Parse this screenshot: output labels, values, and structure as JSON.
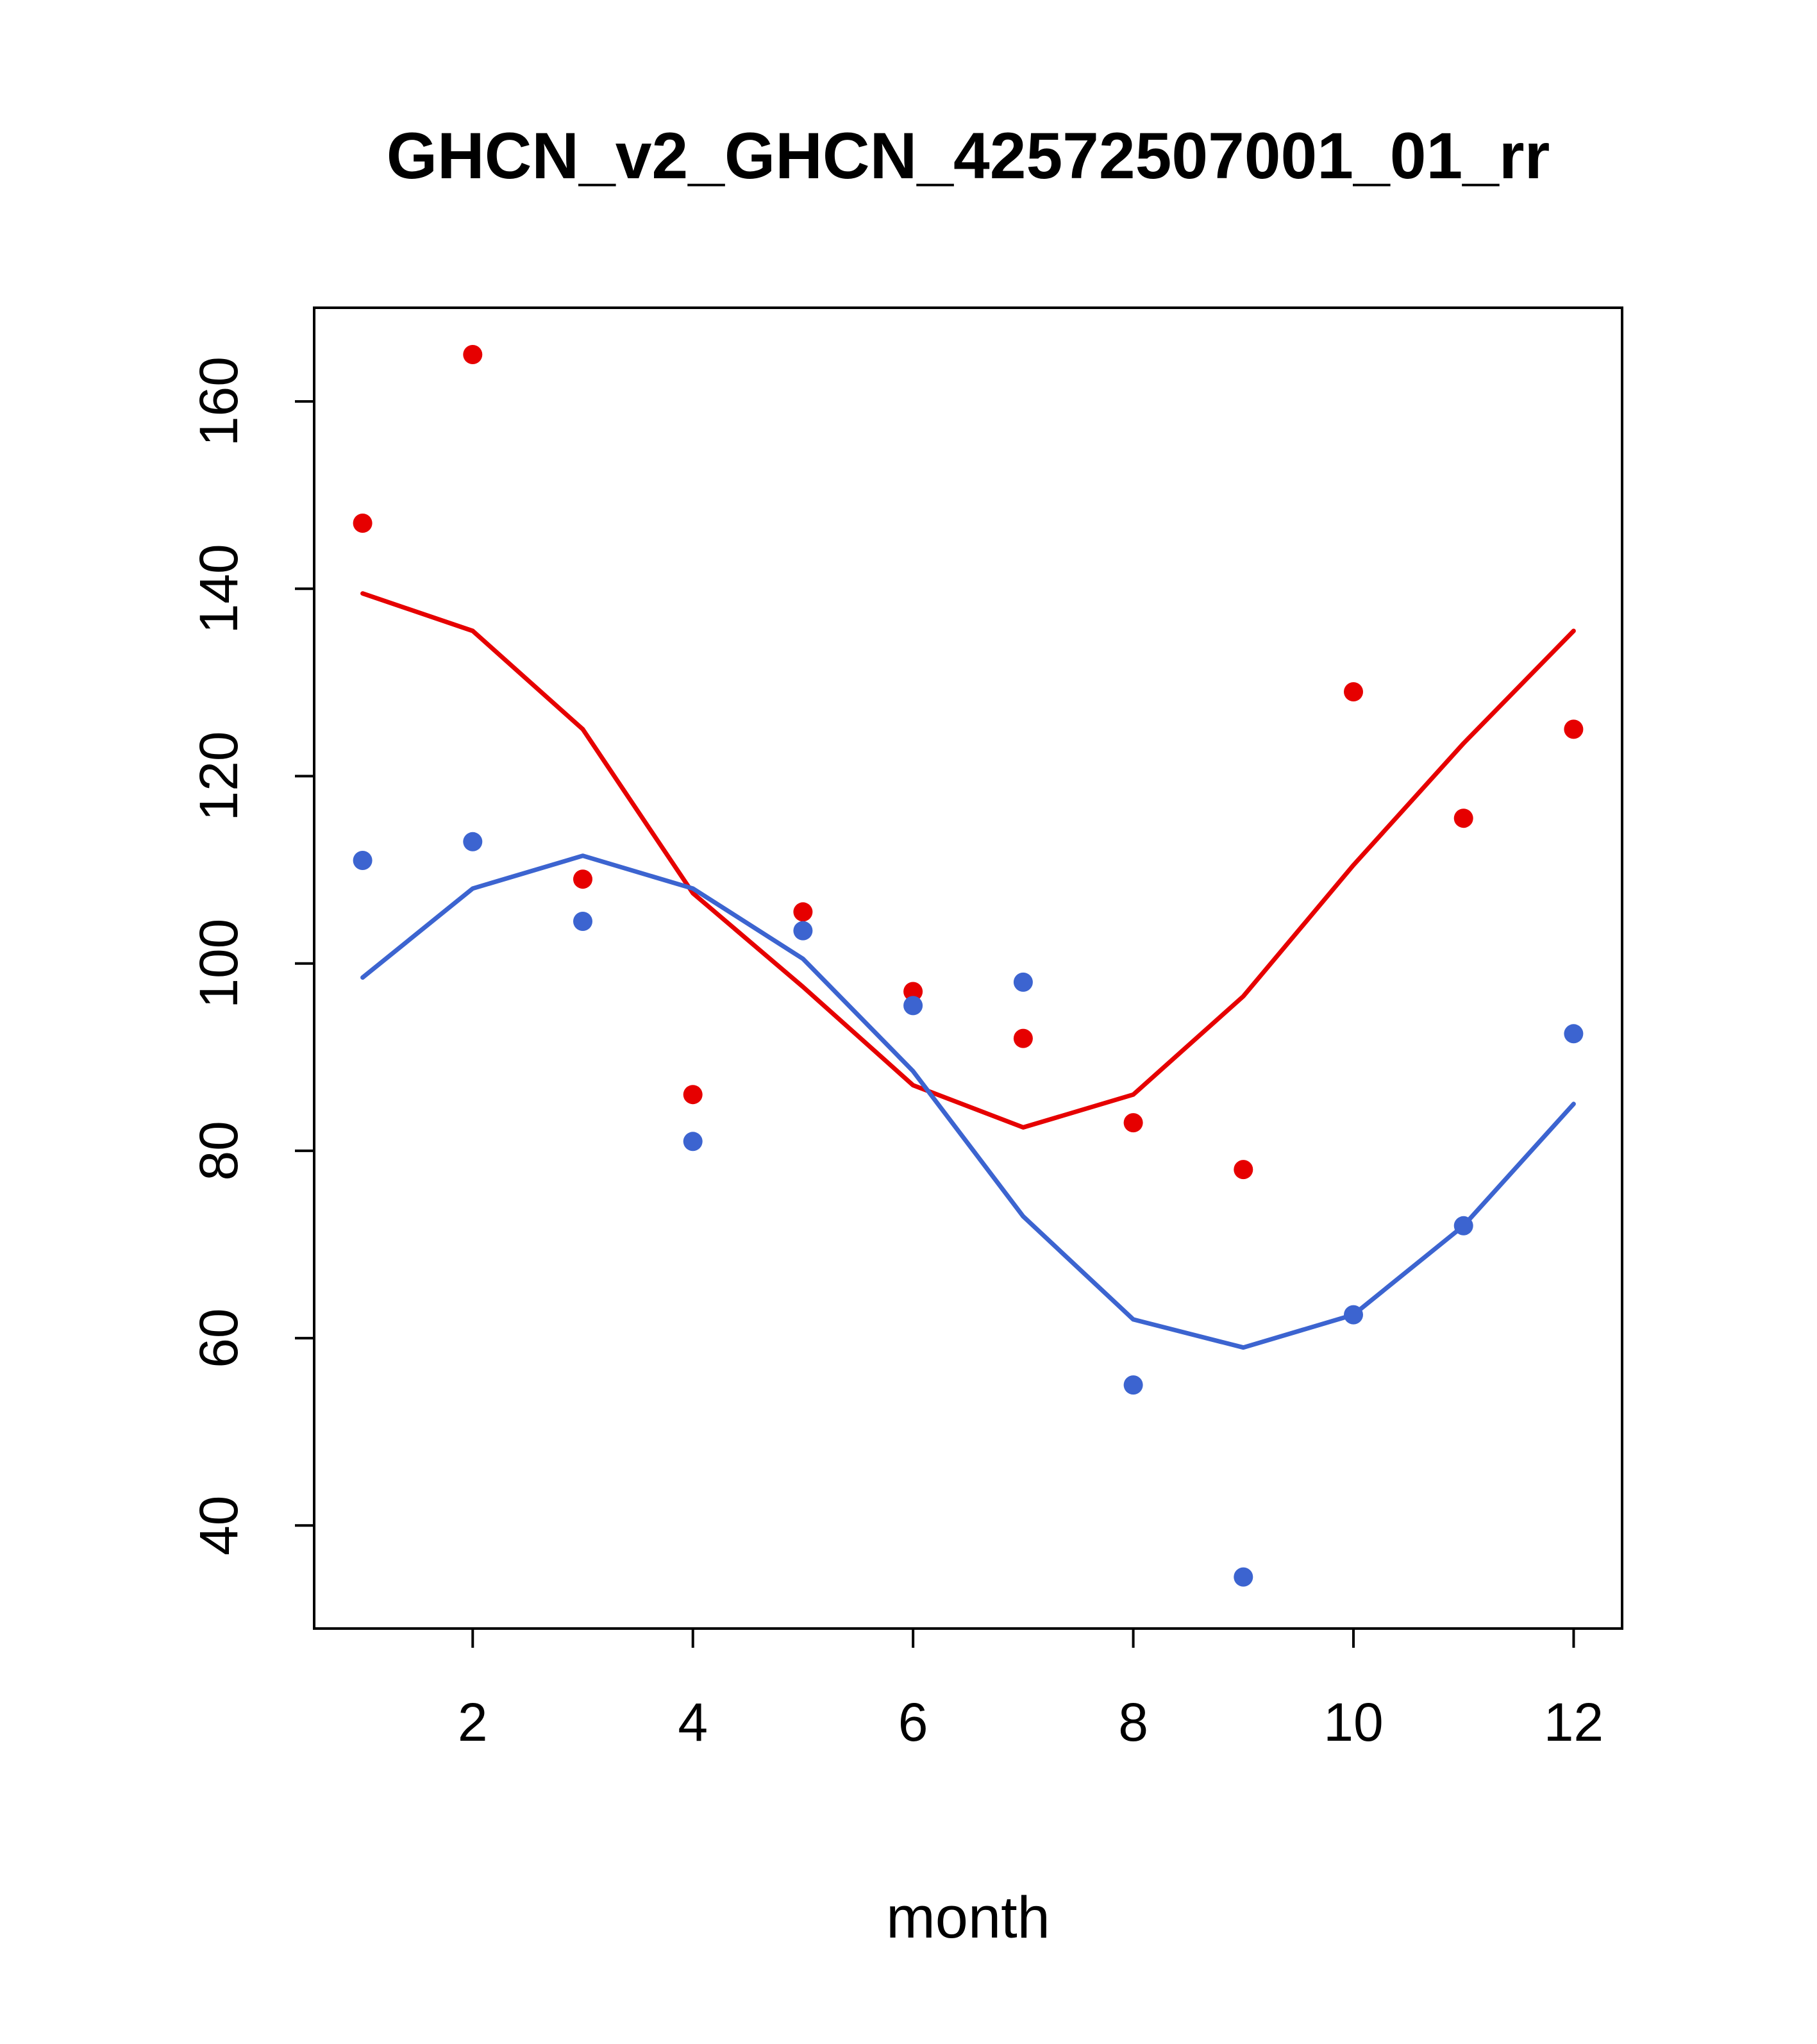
{
  "window": {
    "background": "#ffffff"
  },
  "chart_data": {
    "type": "scatter",
    "title": "GHCN_v2_GHCN_42572507001_01_rr",
    "xlabel": "month",
    "ylabel": "",
    "xlim": [
      0.56,
      12.44
    ],
    "ylim": [
      29,
      170
    ],
    "xticks": [
      2,
      4,
      6,
      8,
      10,
      12
    ],
    "yticks": [
      40,
      60,
      80,
      100,
      120,
      140,
      160
    ],
    "x": [
      1,
      2,
      3,
      4,
      5,
      6,
      7,
      8,
      9,
      10,
      11,
      12
    ],
    "grid": false,
    "legend_position": "none",
    "colors": {
      "red": "#e60000",
      "blue": "#3c64d0",
      "axis": "#000000"
    },
    "series": [
      {
        "name": "red-points",
        "kind": "points",
        "color": "#e60000",
        "values": [
          147,
          165,
          109,
          86,
          105.5,
          97,
          92,
          83,
          78,
          129,
          115.5,
          125
        ]
      },
      {
        "name": "blue-points",
        "kind": "points",
        "color": "#3c64d0",
        "values": [
          111,
          113,
          104.5,
          81,
          103.5,
          95.5,
          98,
          55,
          34.5,
          62.5,
          72,
          92.5
        ]
      },
      {
        "name": "red-smooth-line",
        "kind": "line",
        "color": "#e60000",
        "values": [
          139.5,
          135.5,
          125,
          107.5,
          97.5,
          87,
          82.5,
          86,
          96.5,
          110.5,
          123.5,
          135.5
        ]
      },
      {
        "name": "blue-smooth-line",
        "kind": "line",
        "color": "#3c64d0",
        "values": [
          98.5,
          108,
          111.5,
          108,
          100.5,
          88.5,
          73,
          62,
          59,
          62.5,
          72,
          85
        ]
      }
    ]
  }
}
